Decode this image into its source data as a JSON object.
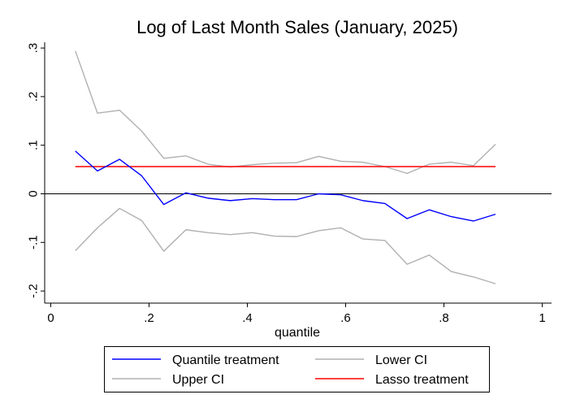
{
  "chart_data": {
    "type": "line",
    "title": "Log of Last Month Sales (January, 2025)",
    "xlabel": "quantile",
    "ylabel": "",
    "xlim": [
      0,
      1
    ],
    "ylim": [
      -0.21,
      0.31
    ],
    "x_ticks": [
      0,
      0.2,
      0.4,
      0.6,
      0.8,
      1
    ],
    "x_tick_labels": [
      "0",
      ".2",
      ".4",
      ".6",
      ".8",
      "1"
    ],
    "y_ticks": [
      -0.2,
      -0.1,
      0,
      0.1,
      0.2,
      0.3
    ],
    "y_tick_labels": [
      "-.2",
      "-.1",
      "0",
      ".1",
      ".2",
      ".3"
    ],
    "reference_line_y": 0,
    "grid": false,
    "legend_position": "bottom",
    "x": [
      0.05,
      0.095,
      0.14,
      0.185,
      0.23,
      0.275,
      0.32,
      0.365,
      0.41,
      0.455,
      0.5,
      0.545,
      0.59,
      0.635,
      0.68,
      0.725,
      0.77,
      0.815,
      0.86,
      0.905
    ],
    "series": [
      {
        "name": "Quantile treatment",
        "color": "#0000ff",
        "values": [
          0.088,
          0.047,
          0.071,
          0.037,
          -0.022,
          0.002,
          -0.009,
          -0.014,
          -0.01,
          -0.012,
          -0.012,
          0.0,
          -0.002,
          -0.014,
          -0.02,
          -0.051,
          -0.033,
          -0.047,
          -0.056,
          -0.042
        ]
      },
      {
        "name": "Lower CI",
        "color": "#b0b0b0",
        "values": [
          -0.117,
          -0.07,
          -0.03,
          -0.055,
          -0.118,
          -0.074,
          -0.08,
          -0.084,
          -0.08,
          -0.087,
          -0.088,
          -0.076,
          -0.07,
          -0.093,
          -0.096,
          -0.145,
          -0.126,
          -0.16,
          -0.171,
          -0.185
        ]
      },
      {
        "name": "Upper CI",
        "color": "#b0b0b0",
        "values": [
          0.294,
          0.166,
          0.172,
          0.129,
          0.073,
          0.078,
          0.061,
          0.055,
          0.06,
          0.063,
          0.064,
          0.077,
          0.067,
          0.065,
          0.056,
          0.042,
          0.061,
          0.065,
          0.058,
          0.102
        ]
      },
      {
        "name": "Lasso treatment",
        "color": "#ff0000",
        "values": [
          0.056,
          0.056,
          0.056,
          0.056,
          0.056,
          0.056,
          0.056,
          0.056,
          0.056,
          0.056,
          0.056,
          0.056,
          0.056,
          0.056,
          0.056,
          0.056,
          0.056,
          0.056,
          0.056,
          0.056
        ]
      }
    ]
  }
}
